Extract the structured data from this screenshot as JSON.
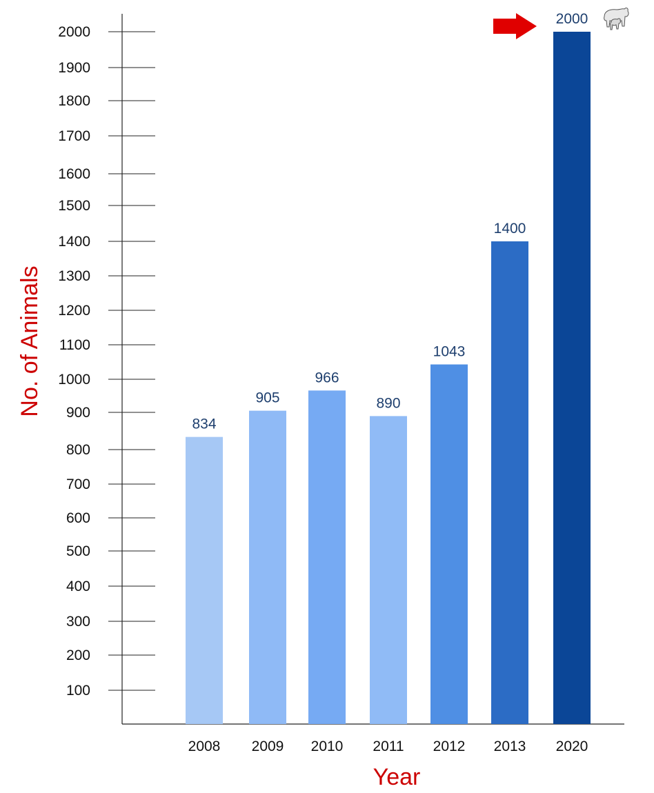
{
  "chart_data": {
    "type": "bar",
    "title": "",
    "xlabel": "Year",
    "ylabel": "No. of Animals",
    "categories": [
      "2008",
      "2009",
      "2010",
      "2011",
      "2012",
      "2013",
      "2020"
    ],
    "series": [
      {
        "values": [
          834,
          905,
          966,
          890,
          1043,
          1400,
          2000
        ]
      }
    ],
    "data_labels": [
      "834",
      "905",
      "966",
      "890",
      "1043",
      "1400",
      "2000"
    ],
    "y_ticks": [
      100,
      200,
      300,
      400,
      500,
      600,
      700,
      800,
      900,
      1000,
      1100,
      1200,
      1300,
      1400,
      1500,
      1600,
      1700,
      1800,
      1900,
      2000
    ],
    "y_tick_labels": [
      "100",
      "200",
      "300",
      "400",
      "500",
      "600",
      "700",
      "800",
      "900",
      "1000",
      "1100",
      "1200",
      "1300",
      "1400",
      "1500",
      "1600",
      "1700",
      "1800",
      "1900",
      "2000"
    ],
    "ylim": [
      0,
      2000
    ],
    "grid": false,
    "legend": "none",
    "bar_colors": [
      "#a6c8f5",
      "#8fbaf6",
      "#76aaf3",
      "#90bbf6",
      "#4f8fe4",
      "#2c6cc5",
      "#0b4697"
    ],
    "label_color": "#1e3f6e",
    "axis_title_color": "#cc0000",
    "annotations": {
      "arrow_color": "#e00000",
      "icon": "cow-and-calf-icon"
    }
  }
}
